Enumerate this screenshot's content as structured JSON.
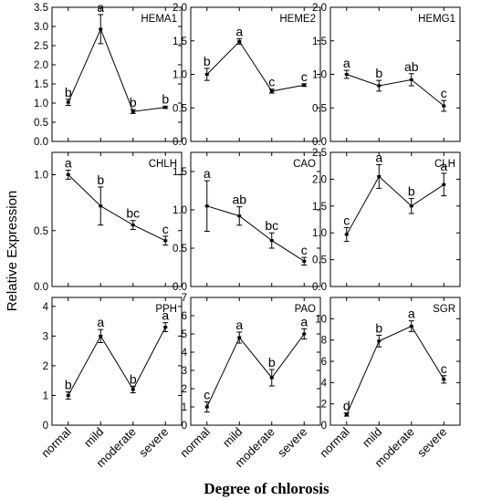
{
  "figure": {
    "ylabel": "Relative Expression",
    "xlabel": "Degree of chlorosis",
    "categories": [
      "normal",
      "mild",
      "moderate",
      "severe"
    ]
  },
  "chart_data": [
    {
      "type": "line",
      "title": "HEMA1",
      "categories": [
        "normal",
        "mild",
        "moderate",
        "severe"
      ],
      "values": [
        1.02,
        2.93,
        0.78,
        0.89
      ],
      "errors": [
        0.08,
        0.38,
        0.05,
        0.03
      ],
      "letters": [
        "b",
        "a",
        "b",
        "b"
      ],
      "ylim": [
        0,
        3.5
      ],
      "yticks": [
        0.0,
        0.5,
        1.0,
        1.5,
        2.0,
        2.5,
        3.0,
        3.5
      ],
      "ytick_labels": [
        "0.0",
        "0.5",
        "1.0",
        "1.5",
        "2.0",
        "2.5",
        "3.0",
        "3.5"
      ]
    },
    {
      "type": "line",
      "title": "HEME2",
      "categories": [
        "normal",
        "mild",
        "moderate",
        "severe"
      ],
      "values": [
        1.0,
        1.49,
        0.75,
        0.84
      ],
      "errors": [
        0.09,
        0.04,
        0.03,
        0.02
      ],
      "letters": [
        "b",
        "a",
        "c",
        "c"
      ],
      "ylim": [
        0,
        2.0
      ],
      "yticks": [
        0.0,
        0.5,
        1.0,
        1.5,
        2.0
      ],
      "ytick_labels": [
        "0.0",
        "0.5",
        "1.0",
        "1.5",
        "2.0"
      ]
    },
    {
      "type": "line",
      "title": "HEMG1",
      "categories": [
        "normal",
        "mild",
        "moderate",
        "severe"
      ],
      "values": [
        1.0,
        0.83,
        0.92,
        0.53
      ],
      "errors": [
        0.06,
        0.08,
        0.09,
        0.08
      ],
      "letters": [
        "a",
        "b",
        "ab",
        "c"
      ],
      "ylim": [
        0,
        2.0
      ],
      "yticks": [
        0.0,
        0.5,
        1.0,
        1.5,
        2.0
      ],
      "ytick_labels": [
        "0.0",
        "0.5",
        "1.0",
        "1.5",
        "2.0"
      ]
    },
    {
      "type": "line",
      "title": "CHLH",
      "categories": [
        "normal",
        "mild",
        "moderate",
        "severe"
      ],
      "values": [
        1.0,
        0.72,
        0.55,
        0.41
      ],
      "errors": [
        0.04,
        0.17,
        0.04,
        0.04
      ],
      "letters": [
        "a",
        "b",
        "bc",
        "c"
      ],
      "ylim": [
        0,
        1.2
      ],
      "yticks": [
        0.0,
        0.5,
        1.0
      ],
      "ytick_labels": [
        "0.0",
        "0.5",
        "1.0"
      ]
    },
    {
      "type": "line",
      "title": "CAO",
      "categories": [
        "normal",
        "mild",
        "moderate",
        "severe"
      ],
      "values": [
        1.05,
        0.92,
        0.6,
        0.33
      ],
      "errors": [
        0.33,
        0.12,
        0.1,
        0.05
      ],
      "letters": [
        "a",
        "ab",
        "bc",
        "c"
      ],
      "ylim": [
        0,
        1.75
      ],
      "yticks": [
        0.0,
        0.5,
        1.0,
        1.5
      ],
      "ytick_labels": [
        "0.0",
        "0.5",
        "1.0",
        "1.5"
      ]
    },
    {
      "type": "line",
      "title": "CLH",
      "categories": [
        "normal",
        "mild",
        "moderate",
        "severe"
      ],
      "values": [
        0.97,
        2.05,
        1.5,
        1.9
      ],
      "errors": [
        0.13,
        0.22,
        0.14,
        0.21
      ],
      "letters": [
        "c",
        "a",
        "b",
        "a"
      ],
      "ylim": [
        0,
        2.5
      ],
      "yticks": [
        0.0,
        0.5,
        1.0,
        1.5,
        2.0,
        2.5
      ],
      "ytick_labels": [
        "0.0",
        "0.5",
        "1.0",
        "1.5",
        "2.0",
        "2.5"
      ]
    },
    {
      "type": "line",
      "title": "PPH",
      "categories": [
        "normal",
        "mild",
        "moderate",
        "severe"
      ],
      "values": [
        1.0,
        3.0,
        1.2,
        3.3
      ],
      "errors": [
        0.12,
        0.22,
        0.11,
        0.15
      ],
      "letters": [
        "b",
        "a",
        "b",
        "a"
      ],
      "ylim": [
        0,
        4.3
      ],
      "yticks": [
        0,
        1,
        2,
        3,
        4
      ],
      "ytick_labels": [
        "0",
        "1",
        "2",
        "3",
        "4"
      ]
    },
    {
      "type": "line",
      "title": "PAO",
      "categories": [
        "normal",
        "mild",
        "moderate",
        "severe"
      ],
      "values": [
        1.0,
        4.8,
        2.6,
        5.0
      ],
      "errors": [
        0.28,
        0.3,
        0.45,
        0.28
      ],
      "letters": [
        "c",
        "a",
        "b",
        "a"
      ],
      "ylim": [
        0,
        7
      ],
      "yticks": [
        0,
        1,
        2,
        3,
        4,
        5,
        6,
        7
      ],
      "ytick_labels": [
        "0",
        "1",
        "2",
        "3",
        "4",
        "5",
        "6",
        "7"
      ]
    },
    {
      "type": "line",
      "title": "SGR",
      "categories": [
        "normal",
        "mild",
        "moderate",
        "severe"
      ],
      "values": [
        1.0,
        7.9,
        9.3,
        4.3
      ],
      "errors": [
        0.15,
        0.55,
        0.5,
        0.35
      ],
      "letters": [
        "d",
        "b",
        "a",
        "c"
      ],
      "ylim": [
        0,
        12
      ],
      "yticks": [
        0,
        2,
        4,
        6,
        8,
        10
      ],
      "ytick_labels": [
        "0",
        "2",
        "4",
        "6",
        "8",
        "10"
      ]
    }
  ]
}
